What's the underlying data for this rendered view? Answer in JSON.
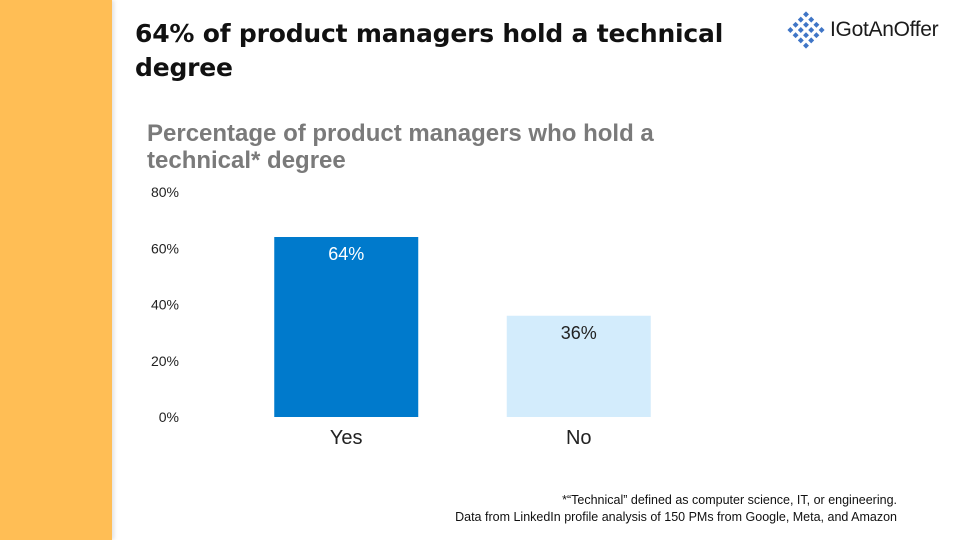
{
  "headline": "64% of product managers hold a technical degree",
  "logo": {
    "text": "IGotAnOffer",
    "icon": "diamond-grid-icon",
    "color": "#3F75C6"
  },
  "chart_data": {
    "type": "bar",
    "title": "Percentage of product managers who hold a technical* degree",
    "categories": [
      "Yes",
      "No"
    ],
    "values": [
      64,
      36
    ],
    "data_labels": [
      "64%",
      "36%"
    ],
    "colors": [
      "#007ACC",
      "#D3ECFC"
    ],
    "ylim": [
      0,
      80
    ],
    "yticks": [
      0,
      20,
      40,
      60,
      80
    ],
    "ytick_labels": [
      "0%",
      "20%",
      "40%",
      "60%",
      "80%"
    ],
    "xlabel": "",
    "ylabel": "",
    "grid": false,
    "legend": "none"
  },
  "footnote": {
    "line1": "*“Technical” defined as computer science, IT, or engineering.",
    "line2": "Data from LinkedIn profile analysis of 150 PMs from Google, Meta, and Amazon"
  },
  "accent_color": "#FFBE55"
}
